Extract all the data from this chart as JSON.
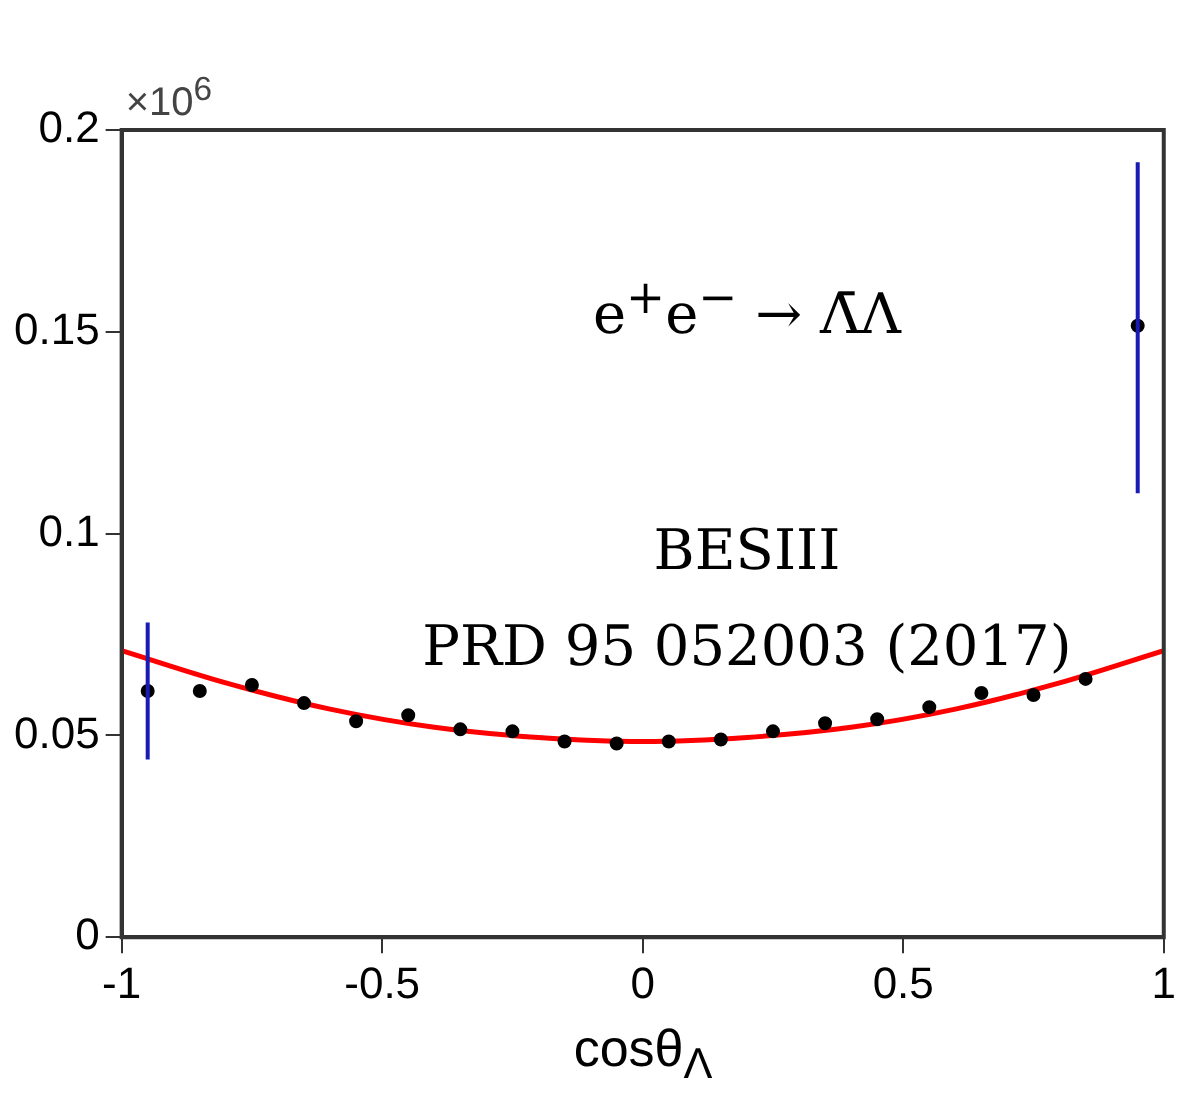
{
  "chart_data": {
    "type": "scatter",
    "xlabel": "cosθ$_{Λ}$",
    "ylabel": "×10$^{6}$",
    "xlim": [
      -1,
      1
    ],
    "xticks": [
      -1,
      -0.5,
      0,
      0.5,
      1
    ],
    "ylim": [
      0,
      0.2
    ],
    "yticks": [
      0,
      0.05,
      0.1,
      0.15,
      0.2
    ],
    "grid": false,
    "legend": false,
    "series": [
      {
        "marker": "circle",
        "color": "#000000",
        "x": [
          -0.95,
          -0.85,
          -0.75,
          -0.65,
          -0.55,
          -0.45,
          -0.35,
          -0.25,
          -0.15,
          -0.05,
          0.05,
          0.15,
          0.25,
          0.35,
          0.45,
          0.55,
          0.65,
          0.75,
          0.85,
          0.95
        ],
        "values": [
          0.061,
          0.061,
          0.0625,
          0.058,
          0.0535,
          0.055,
          0.0515,
          0.051,
          0.0485,
          0.048,
          0.0485,
          0.049,
          0.051,
          0.053,
          0.054,
          0.057,
          0.0605,
          0.06,
          0.064,
          0.1515
        ],
        "errors": [
          [
            0.044,
            0.078
          ],
          null,
          null,
          null,
          null,
          null,
          null,
          null,
          null,
          null,
          null,
          null,
          null,
          null,
          null,
          null,
          null,
          null,
          null,
          [
            0.11,
            0.192
          ]
        ]
      },
      {
        "type": "line",
        "color": "#ff0000",
        "x": [
          -1,
          -0.8,
          -0.6,
          -0.4,
          -0.2,
          0,
          0.2,
          0.4,
          0.6,
          0.8,
          1
        ],
        "values": [
          0.071,
          0.063,
          0.0565,
          0.052,
          0.0495,
          0.0485,
          0.0495,
          0.052,
          0.0565,
          0.063,
          0.071
        ]
      }
    ],
    "annotations": [
      "e$^{+}$e$^{−}$ → Λ̄Λ",
      "BESIII",
      "PRD 95 052003 (2017)"
    ]
  }
}
